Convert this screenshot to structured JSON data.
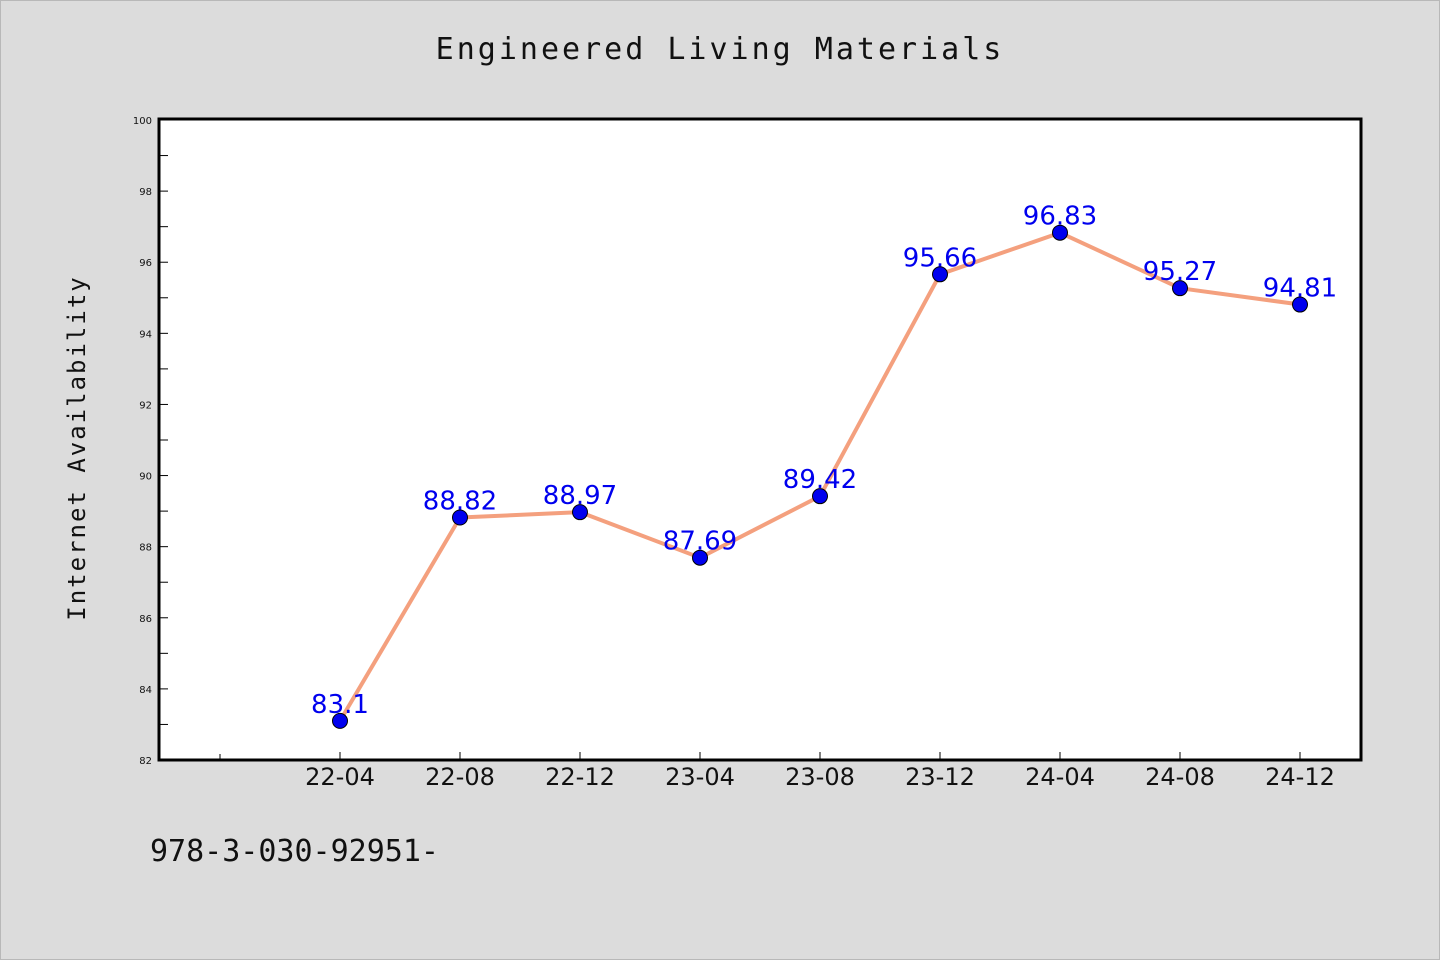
{
  "chart_data": {
    "type": "line",
    "title": "Engineered Living Materials",
    "xlabel": "",
    "ylabel": "Internet Availability",
    "categories": [
      "22-04",
      "22-08",
      "22-12",
      "23-04",
      "23-08",
      "23-12",
      "24-04",
      "24-08",
      "24-12"
    ],
    "series": [
      {
        "values": [
          83.1,
          88.82,
          88.97,
          87.69,
          89.42,
          95.66,
          96.83,
          95.27,
          94.81
        ],
        "labels": [
          "83.1",
          "88.82",
          "88.97",
          "87.69",
          "89.42",
          "95.66",
          "96.83",
          "95.27",
          "94.81"
        ]
      }
    ],
    "ylim": [
      82,
      100
    ],
    "yticks": [
      "82",
      "84",
      "86",
      "88",
      "90",
      "92",
      "94",
      "96",
      "98",
      "100"
    ],
    "grid": false,
    "colors": {
      "line": "#f4a07e",
      "marker": "#0000ee",
      "data_label": "#0000ee",
      "background": "#dcdcdc",
      "plot_background": "#ffffff"
    }
  },
  "footer": {
    "text": "978-3-030-92951-"
  }
}
